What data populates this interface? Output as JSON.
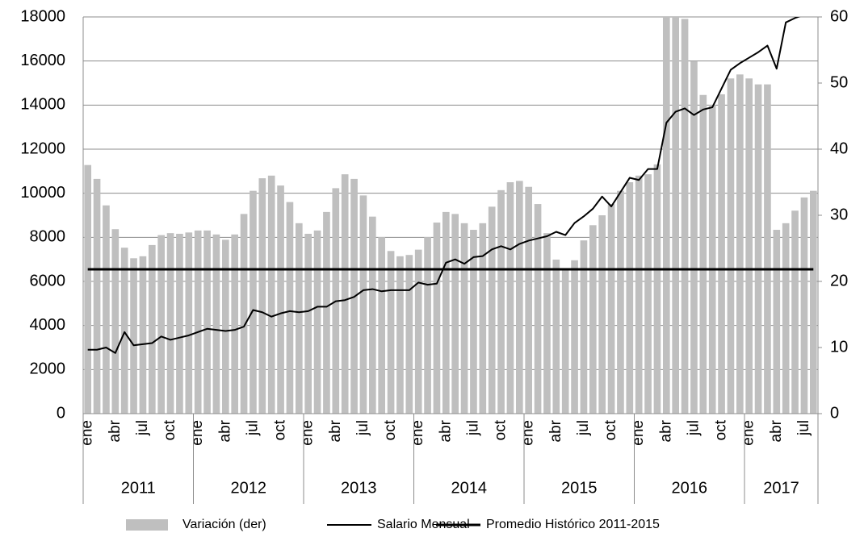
{
  "chart_data": {
    "type": "bar-line",
    "categories": [
      "ene",
      null,
      null,
      "abr",
      null,
      null,
      "jul",
      null,
      null,
      "oct",
      null,
      null,
      "ene",
      null,
      null,
      "abr",
      null,
      null,
      "jul",
      null,
      null,
      "oct",
      null,
      null,
      "ene",
      null,
      null,
      "abr",
      null,
      null,
      "jul",
      null,
      null,
      "oct",
      null,
      null,
      "ene",
      null,
      null,
      "abr",
      null,
      null,
      "jul",
      null,
      null,
      "oct",
      null,
      null,
      "ene",
      null,
      null,
      "abr",
      null,
      null,
      "jul",
      null,
      null,
      "oct",
      null,
      null,
      "ene",
      null,
      null,
      "abr",
      null,
      null,
      "jul",
      null,
      null,
      "oct",
      null,
      null,
      "ene",
      null,
      null,
      "abr",
      null,
      null,
      "jul",
      null
    ],
    "years": [
      "2011",
      "2012",
      "2013",
      "2014",
      "2015",
      "2016",
      "2017"
    ],
    "ylim": [
      0,
      18000
    ],
    "yticks": [
      0,
      2000,
      4000,
      6000,
      8000,
      10000,
      12000,
      14000,
      16000,
      18000
    ],
    "y2lim": [
      0,
      60
    ],
    "y2ticks": [
      0,
      10,
      20,
      30,
      40,
      50,
      60
    ],
    "grid": true,
    "series": [
      {
        "name": "Variación (der)",
        "kind": "bar",
        "axis": "y2",
        "color": "#bfbfbf",
        "values": [
          37.6,
          35.5,
          31.5,
          27.9,
          25.1,
          23.5,
          23.8,
          25.5,
          27,
          27.3,
          27.2,
          27.4,
          27.7,
          27.7,
          27.1,
          26.3,
          27.1,
          30.2,
          33.7,
          35.6,
          36,
          34.5,
          32,
          28.8,
          27.2,
          27.7,
          30.5,
          34.1,
          36.2,
          35.5,
          33,
          29.8,
          26.7,
          24.6,
          23.8,
          24,
          24.8,
          26.7,
          28.9,
          30.5,
          30.2,
          28.8,
          27.8,
          28.8,
          31.3,
          33.8,
          35,
          35.2,
          34.3,
          31.7,
          27.3,
          23.3,
          22,
          23.2,
          26.2,
          28.5,
          30,
          31.7,
          33.7,
          35,
          36,
          36.2,
          37.7,
          63,
          63,
          59.7,
          53.3,
          48.2,
          46.7,
          48.3,
          50.7,
          51.3,
          50.7,
          49.8,
          49.8,
          27.8,
          28.8,
          30.7,
          32.7,
          33.7
        ]
      },
      {
        "name": "Salario Mensual",
        "kind": "line",
        "color": "#000000",
        "width": 2,
        "values": [
          2900,
          2900,
          3000,
          2750,
          3700,
          3100,
          3150,
          3200,
          3500,
          3350,
          3450,
          3550,
          3700,
          3850,
          3800,
          3750,
          3800,
          3950,
          4700,
          4600,
          4400,
          4550,
          4650,
          4600,
          4650,
          4850,
          4850,
          5100,
          5150,
          5300,
          5600,
          5650,
          5550,
          5600,
          5600,
          5600,
          5950,
          5850,
          5900,
          6850,
          7000,
          6800,
          7100,
          7150,
          7450,
          7600,
          7450,
          7700,
          7850,
          7950,
          8050,
          8250,
          8100,
          8650,
          8950,
          9300,
          9850,
          9400,
          10050,
          10700,
          10600,
          11100,
          11100,
          13200,
          13700,
          13850,
          13550,
          13800,
          13900,
          14750,
          15600,
          15900,
          16150,
          16400,
          16700,
          15650,
          17750,
          17950,
          18100,
          18300
        ]
      },
      {
        "name": "Promedio Histórico 2011-2015",
        "kind": "line",
        "color": "#000000",
        "width": 3,
        "values": [
          6550,
          6550,
          6550,
          6550,
          6550,
          6550,
          6550,
          6550,
          6550,
          6550,
          6550,
          6550,
          6550,
          6550,
          6550,
          6550,
          6550,
          6550,
          6550,
          6550,
          6550,
          6550,
          6550,
          6550,
          6550,
          6550,
          6550,
          6550,
          6550,
          6550,
          6550,
          6550,
          6550,
          6550,
          6550,
          6550,
          6550,
          6550,
          6550,
          6550,
          6550,
          6550,
          6550,
          6550,
          6550,
          6550,
          6550,
          6550,
          6550,
          6550,
          6550,
          6550,
          6550,
          6550,
          6550,
          6550,
          6550,
          6550,
          6550,
          6550,
          6550,
          6550,
          6550,
          6550,
          6550,
          6550,
          6550,
          6550,
          6550,
          6550,
          6550,
          6550,
          6550,
          6550,
          6550,
          6550,
          6550,
          6550,
          6550,
          6550
        ]
      }
    ]
  }
}
